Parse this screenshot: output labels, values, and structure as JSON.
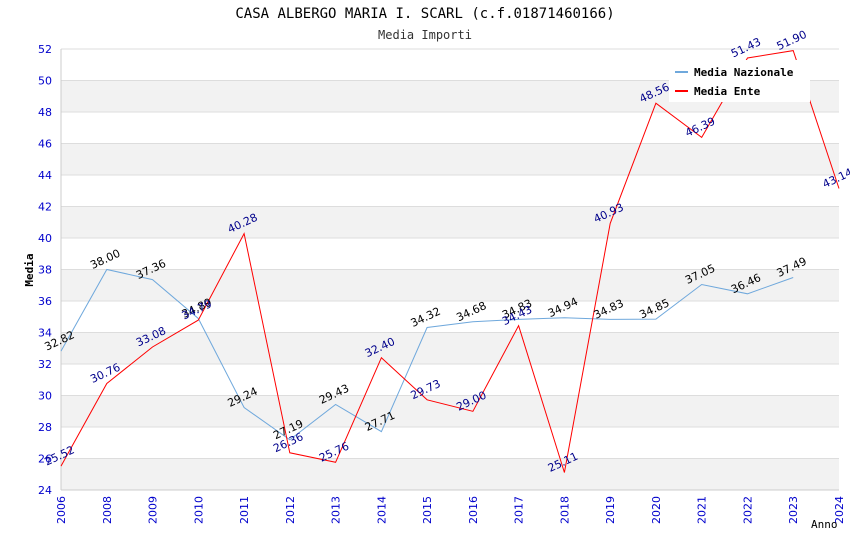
{
  "chart_data": {
    "type": "line",
    "title": "CASA ALBERGO MARIA I. SCARL (c.f.01871460166)",
    "subtitle": "Media Importi",
    "xlabel": "Anno",
    "ylabel": "Media",
    "ylim": [
      24,
      52
    ],
    "yticks": [
      24,
      26,
      28,
      30,
      32,
      34,
      36,
      38,
      40,
      42,
      44,
      46,
      48,
      50,
      52
    ],
    "categories": [
      "2006",
      "2008",
      "2009",
      "2010",
      "2011",
      "2012",
      "2013",
      "2014",
      "2015",
      "2016",
      "2017",
      "2018",
      "2019",
      "2020",
      "2021",
      "2022",
      "2023",
      "2024"
    ],
    "grid": "horizontal bands",
    "legend_position": "top-right",
    "series": [
      {
        "name": "Media Nazionale",
        "color": "#6fa8dc",
        "values": [
          32.82,
          38.0,
          37.36,
          34.89,
          29.24,
          27.19,
          29.43,
          27.71,
          34.32,
          34.68,
          34.83,
          34.94,
          34.83,
          34.85,
          37.05,
          36.46,
          37.49,
          null
        ],
        "labels": [
          "32.82",
          "38.00",
          "37.36",
          "34.89",
          "29.24",
          "27.19",
          "29.43",
          "27.71",
          "34.32",
          "34.68",
          "34.83",
          "34.94",
          "34.83",
          "34.85",
          "37.05",
          "36.46",
          "37.49",
          ""
        ]
      },
      {
        "name": "Media Ente",
        "color": "#ff0000",
        "values": [
          25.52,
          30.76,
          33.08,
          34.79,
          40.28,
          26.36,
          25.76,
          32.4,
          29.73,
          29.0,
          34.43,
          25.11,
          40.93,
          48.56,
          46.39,
          51.43,
          51.9,
          43.14
        ],
        "labels": [
          "25.52",
          "30.76",
          "33.08",
          "34.79",
          "40.28",
          "26.36",
          "25.76",
          "32.40",
          "29.73",
          "29.00",
          "34.43",
          "25.11",
          "40.93",
          "48.56",
          "46.39",
          "51.43",
          "51.90",
          "43.14"
        ]
      }
    ]
  }
}
